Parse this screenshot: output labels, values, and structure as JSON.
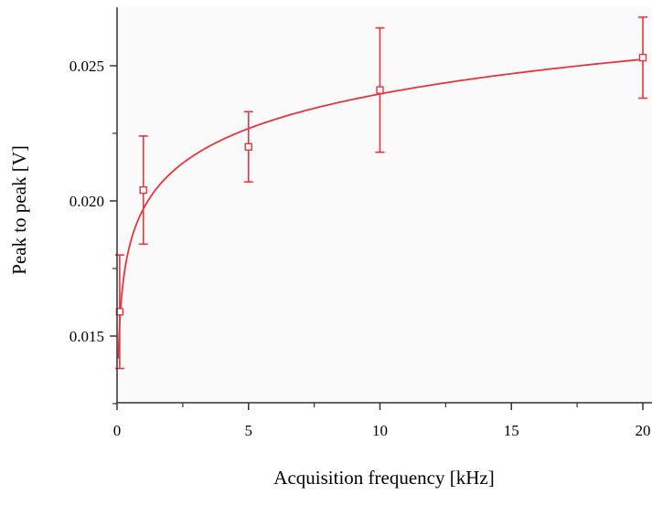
{
  "chart_data": {
    "type": "scatter",
    "title": "",
    "xlabel": "Acquisition frequency [kHz]",
    "ylabel": "Peak to peak [V]",
    "xlim": [
      0,
      20
    ],
    "ylim": [
      0.0126,
      0.027
    ],
    "x_ticks": [
      0,
      5,
      10,
      15,
      20
    ],
    "x_tick_labels": [
      "0",
      "5",
      "10",
      "15",
      "20"
    ],
    "x_minor_ticks": [
      2.5,
      7.5,
      12.5,
      17.5
    ],
    "y_ticks": [
      0.015,
      0.02,
      0.025
    ],
    "y_tick_labels": [
      "0.015",
      "0.020",
      "0.025"
    ],
    "y_minor_ticks": [
      0.0125,
      0.0175,
      0.0225
    ],
    "grid": false,
    "legend": "none",
    "series": [
      {
        "marker": "open-square",
        "color": "#e8343c",
        "points": [
          {
            "x": 0.1,
            "y": 0.0159,
            "yerr_low": 0.0138,
            "yerr_high": 0.018
          },
          {
            "x": 1,
            "y": 0.0204,
            "yerr_low": 0.0184,
            "yerr_high": 0.0224
          },
          {
            "x": 5,
            "y": 0.022,
            "yerr_low": 0.0207,
            "yerr_high": 0.0233
          },
          {
            "x": 10,
            "y": 0.0241,
            "yerr_low": 0.0218,
            "yerr_high": 0.0264
          },
          {
            "x": 20,
            "y": 0.0253,
            "yerr_low": 0.0238,
            "yerr_high": 0.0268
          }
        ]
      }
    ],
    "fit_curve": {
      "type": "logarithmic",
      "color": "#e8343c",
      "a": 0.019704,
      "b": 0.001847,
      "x_start": 0.05,
      "x_end": 20
    }
  }
}
